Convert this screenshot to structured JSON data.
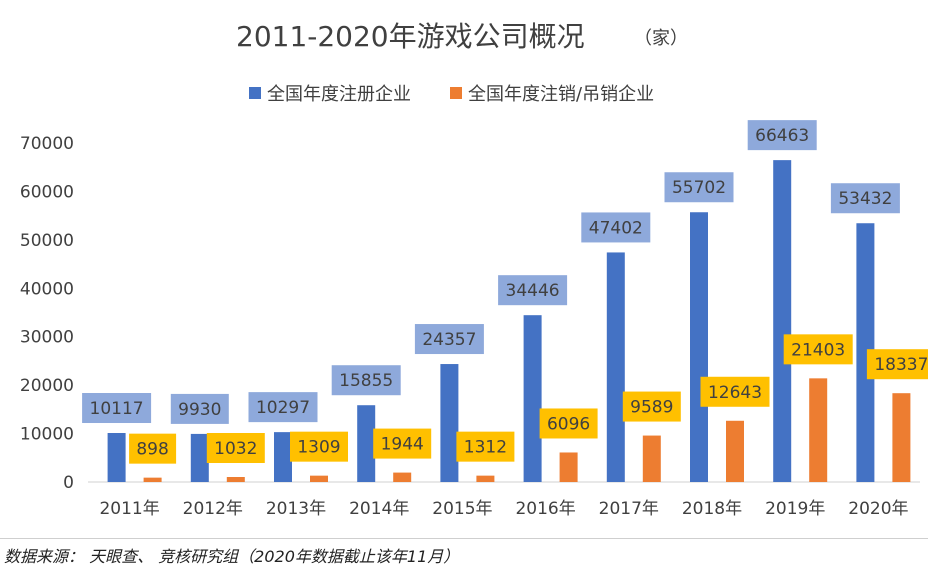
{
  "chart_data": {
    "type": "bar",
    "title": "2011-2020年游戏公司概况",
    "title_unit": "（家）",
    "categories": [
      "2011年",
      "2012年",
      "2013年",
      "2014年",
      "2015年",
      "2016年",
      "2017年",
      "2018年",
      "2019年",
      "2020年"
    ],
    "series": [
      {
        "name": "全国年度注册企业",
        "color": "#4472C4",
        "label_bg": "#8EA9DB",
        "values": [
          10117,
          9930,
          10297,
          15855,
          24357,
          34446,
          47402,
          55702,
          66463,
          53432
        ]
      },
      {
        "name": "全国年度注销/吊销企业",
        "color": "#ED7D31",
        "label_bg": "#FFC000",
        "values": [
          898,
          1032,
          1309,
          1944,
          1312,
          6096,
          9589,
          12643,
          21403,
          18337
        ]
      }
    ],
    "ylim": [
      0,
      70000
    ],
    "yticks": [
      0,
      10000,
      20000,
      30000,
      40000,
      50000,
      60000,
      70000
    ],
    "xlabel": "",
    "ylabel": "",
    "legend_position": "top",
    "grid": false
  },
  "source": "数据来源： 天眼查、 竞核研究组（2020年数据截止该年11月）"
}
